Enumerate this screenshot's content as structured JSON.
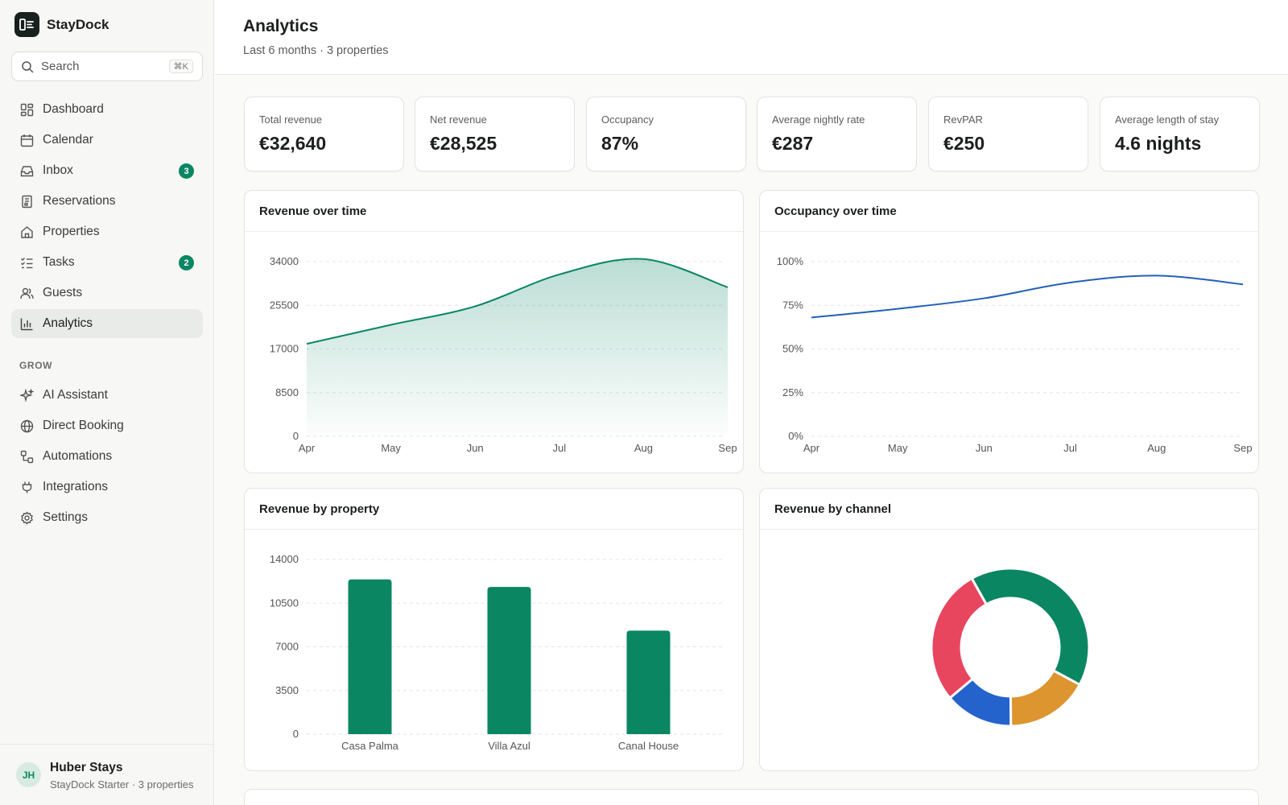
{
  "app": {
    "name": "StayDock"
  },
  "search": {
    "label": "Search",
    "shortcut": "⌘K"
  },
  "nav": {
    "items": [
      {
        "label": "Dashboard",
        "icon": "dashboard-icon"
      },
      {
        "label": "Calendar",
        "icon": "calendar-icon"
      },
      {
        "label": "Inbox",
        "icon": "inbox-icon",
        "badge": "3"
      },
      {
        "label": "Reservations",
        "icon": "reservations-icon"
      },
      {
        "label": "Properties",
        "icon": "home-icon"
      },
      {
        "label": "Tasks",
        "icon": "tasks-icon",
        "badge": "2"
      },
      {
        "label": "Guests",
        "icon": "guests-icon"
      },
      {
        "label": "Analytics",
        "icon": "analytics-icon",
        "active": true
      }
    ],
    "grow_label": "GROW",
    "grow_items": [
      {
        "label": "AI Assistant",
        "icon": "sparkle-icon"
      },
      {
        "label": "Direct Booking",
        "icon": "globe-icon"
      },
      {
        "label": "Automations",
        "icon": "automations-icon"
      },
      {
        "label": "Integrations",
        "icon": "plug-icon"
      },
      {
        "label": "Settings",
        "icon": "gear-icon"
      }
    ]
  },
  "user": {
    "initials": "JH",
    "name": "Huber Stays",
    "plan": "StayDock Starter · 3 properties"
  },
  "header": {
    "title": "Analytics",
    "subtitle": "Last 6 months · 3 properties"
  },
  "kpis": [
    {
      "label": "Total revenue",
      "value": "€32,640"
    },
    {
      "label": "Net revenue",
      "value": "€28,525"
    },
    {
      "label": "Occupancy",
      "value": "87%"
    },
    {
      "label": "Average nightly rate",
      "value": "€287"
    },
    {
      "label": "RevPAR",
      "value": "€250"
    },
    {
      "label": "Average length of stay",
      "value": "4.6 nights"
    }
  ],
  "colors": {
    "accent": "#0a8663",
    "blue": "#2460b6",
    "red": "#e8455f",
    "orange": "#dd9530",
    "royal": "#2463cc"
  },
  "cards": {
    "revenue_time": "Revenue over time",
    "occupancy_time": "Occupancy over time",
    "revenue_property": "Revenue by property",
    "revenue_channel": "Revenue by channel"
  },
  "chart_data": [
    {
      "type": "area",
      "title": "Revenue over time",
      "x": [
        "Apr",
        "May",
        "Jun",
        "Jul",
        "Aug",
        "Sep"
      ],
      "values": [
        18000,
        21700,
        25300,
        31500,
        34500,
        29000
      ],
      "ylim": [
        0,
        34000
      ],
      "yticks": [
        "0",
        "8500",
        "17000",
        "25500",
        "34000"
      ],
      "grid": true
    },
    {
      "type": "line",
      "title": "Occupancy over time",
      "x": [
        "Apr",
        "May",
        "Jun",
        "Jul",
        "Aug",
        "Sep"
      ],
      "values": [
        68,
        73,
        79,
        88,
        92,
        87
      ],
      "ylim": [
        0,
        100
      ],
      "yticks": [
        "0%",
        "25%",
        "50%",
        "75%",
        "100%"
      ],
      "grid": true
    },
    {
      "type": "bar",
      "title": "Revenue by property",
      "categories": [
        "Casa Palma",
        "Villa Azul",
        "Canal House"
      ],
      "values": [
        12400,
        11800,
        8300
      ],
      "ylim": [
        0,
        14000
      ],
      "yticks": [
        "0",
        "3500",
        "7000",
        "10500",
        "14000"
      ],
      "grid": true
    },
    {
      "type": "pie",
      "title": "Revenue by channel",
      "slices": [
        {
          "value": 41,
          "color": "#0a8663"
        },
        {
          "value": 17,
          "color": "#dd9530"
        },
        {
          "value": 14,
          "color": "#2463cc"
        },
        {
          "value": 28,
          "color": "#e8455f"
        }
      ]
    }
  ]
}
